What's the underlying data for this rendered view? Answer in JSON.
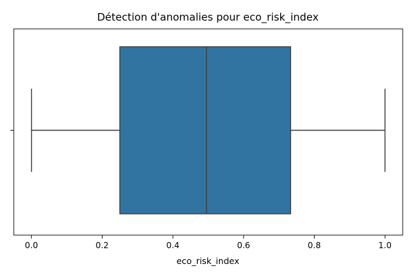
{
  "chart_data": {
    "type": "boxplot",
    "title": "Détection d'anomalies pour eco_risk_index",
    "xlabel": "eco_risk_index",
    "ylabel": "",
    "xlim": [
      -0.05,
      1.05
    ],
    "xticks": [
      0.0,
      0.2,
      0.4,
      0.6,
      0.8,
      1.0
    ],
    "xtick_labels": [
      "0.0",
      "0.2",
      "0.4",
      "0.6",
      "0.8",
      "1.0"
    ],
    "orientation": "horizontal",
    "grid": false,
    "legend": "none",
    "box": {
      "min": 0.0,
      "q1": 0.25,
      "median": 0.495,
      "q3": 0.733,
      "max": 1.0,
      "outliers": []
    },
    "colors": {
      "box_fill": "#3274a1",
      "lines": "#3f3f3f",
      "axes": "#000000"
    }
  }
}
